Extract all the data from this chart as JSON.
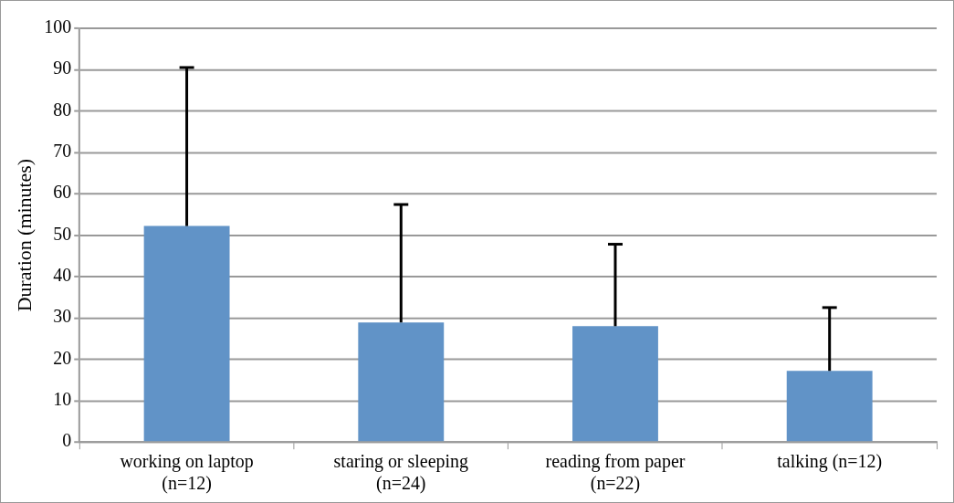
{
  "chart_data": {
    "type": "bar",
    "ylabel": "Duration (minutes)",
    "categories": [
      "working on laptop (n=12)",
      "staring or sleeping (n=24)",
      "reading from paper (n=22)",
      "talking (n=12)"
    ],
    "values": [
      52.2,
      28.9,
      28.0,
      17.2
    ],
    "errors": [
      [
        52.2,
        90.5
      ],
      [
        28.9,
        57.4
      ],
      [
        28.0,
        47.8
      ],
      [
        17.2,
        32.5
      ]
    ],
    "color": "#6193c7",
    "ylim": [
      0,
      100
    ],
    "yticks": [
      0,
      10,
      20,
      30,
      40,
      50,
      60,
      70,
      80,
      90,
      100
    ],
    "grid": "y",
    "legend": false
  }
}
